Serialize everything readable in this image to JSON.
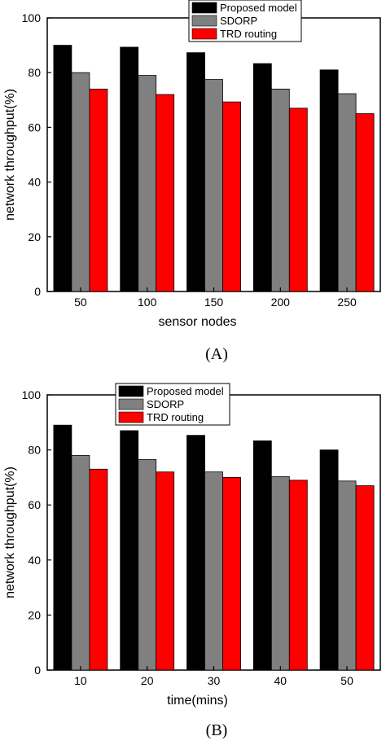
{
  "chart_data": [
    {
      "type": "bar",
      "panel_label": "(A)",
      "xlabel": "sensor nodes",
      "ylabel": "network throughput(%)",
      "categories": [
        "50",
        "100",
        "150",
        "200",
        "250"
      ],
      "ylim": [
        0,
        100
      ],
      "yticks": [
        "0",
        "20",
        "40",
        "60",
        "80",
        "100"
      ],
      "legend_position": "top-right",
      "series": [
        {
          "name": "Proposed model",
          "color": "#000000",
          "values": [
            90,
            89.3,
            87.3,
            83.3,
            81
          ]
        },
        {
          "name": "SDORP",
          "color": "#808080",
          "values": [
            80,
            79,
            77.5,
            74,
            72.3
          ]
        },
        {
          "name": "TRD routing",
          "color": "#ff0000",
          "values": [
            74,
            72,
            69.3,
            67,
            65
          ]
        }
      ]
    },
    {
      "type": "bar",
      "panel_label": "(B)",
      "xlabel": "time(mins)",
      "ylabel": "network throughput(%)",
      "categories": [
        "10",
        "20",
        "30",
        "40",
        "50"
      ],
      "ylim": [
        0,
        100
      ],
      "yticks": [
        "0",
        "20",
        "40",
        "60",
        "80",
        "100"
      ],
      "legend_position": "top-right",
      "series": [
        {
          "name": "Proposed model",
          "color": "#000000",
          "values": [
            89,
            87,
            85.3,
            83.3,
            80
          ]
        },
        {
          "name": "SDORP",
          "color": "#808080",
          "values": [
            78,
            76.5,
            72,
            70.3,
            68.7
          ]
        },
        {
          "name": "TRD routing",
          "color": "#ff0000",
          "values": [
            73,
            72,
            70,
            69,
            67
          ]
        }
      ]
    }
  ]
}
